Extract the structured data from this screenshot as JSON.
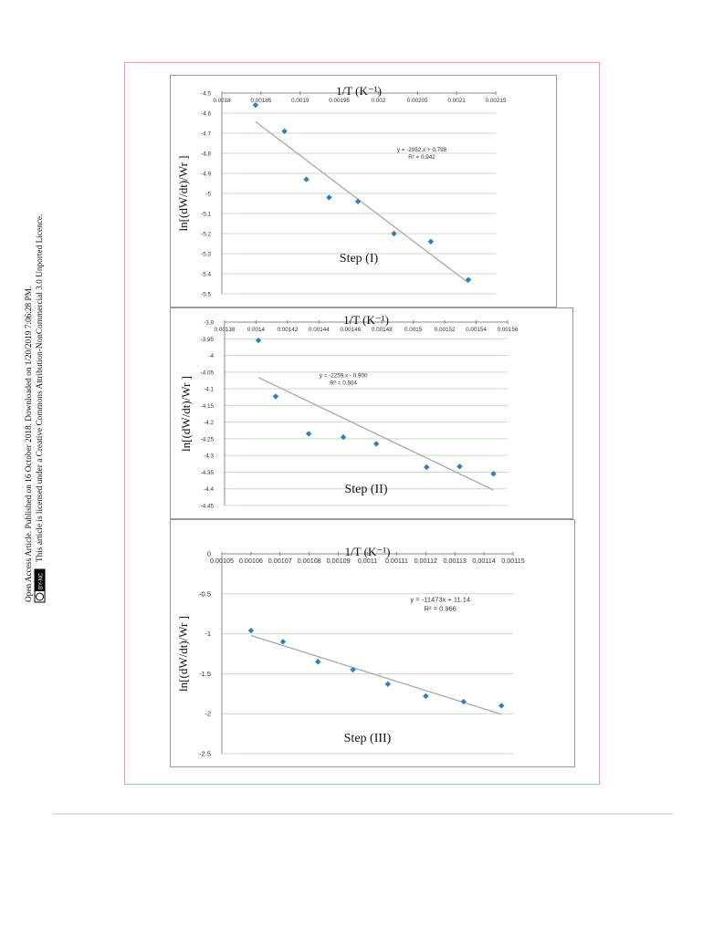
{
  "side_note": {
    "line1": "Open Access Article. Published on 16 October 2018. Downloaded on 1/20/2019 7:06:28 PM.",
    "line2": "This article is licensed under a Creative Commons Attribution-NonCommercial 3.0 Unported Licence.",
    "badge": "BY-NC"
  },
  "colors": {
    "marker": "#2e7fc0",
    "trend": "#a9a9a9",
    "grid": "#c8dcc4",
    "frame": "#d9a0c4",
    "panel_border": "#9a9a9a"
  },
  "chart_data": [
    {
      "type": "scatter",
      "title": "Step (I)",
      "xlabel": "1/T (K⁻¹)",
      "ylabel": "ln[(dW/dt)/Wr ]",
      "xlim": [
        0.0018,
        0.00215
      ],
      "ylim": [
        -5.5,
        -4.5
      ],
      "x_ticks": [
        "0.0018",
        "0.00185",
        "0.0019",
        "0.00195",
        "0.002",
        "0.00205",
        "0.0021",
        "0.00215"
      ],
      "y_ticks": [
        "-4.5",
        "-4.6",
        "-4.7",
        "-4.8",
        "-4.9",
        "-5",
        "-5.1",
        "-5.2",
        "-5.3",
        "-5.4",
        "-5.5"
      ],
      "x_axis_position": "top",
      "grid": true,
      "points": [
        {
          "x": 0.001843,
          "y": -4.56
        },
        {
          "x": 0.00188,
          "y": -4.69
        },
        {
          "x": 0.001908,
          "y": -4.93
        },
        {
          "x": 0.001937,
          "y": -5.02
        },
        {
          "x": 0.001974,
          "y": -5.04
        },
        {
          "x": 0.00202,
          "y": -5.2
        },
        {
          "x": 0.002067,
          "y": -5.24
        },
        {
          "x": 0.002115,
          "y": -5.43
        }
      ],
      "trendline": {
        "slope": -2952,
        "intercept": 0.798,
        "x_range": [
          0.001843,
          0.002115
        ]
      },
      "equation": "y = -2952.x + 0.798",
      "r2": "R² = 0.942"
    },
    {
      "type": "scatter",
      "title": "Step (II)",
      "xlabel": "1/T (K⁻¹)",
      "ylabel": "ln[(dW/dt)/Wr ]",
      "xlim": [
        0.00138,
        0.00156
      ],
      "ylim": [
        -4.45,
        -3.9
      ],
      "x_ticks": [
        "0.00138",
        "0.0014",
        "0.00142",
        "0.00144",
        "0.00146",
        "0.00148",
        "0.0015",
        "0.00152",
        "0.00154",
        "0.00156"
      ],
      "y_ticks": [
        "-3.9",
        "-3.95",
        "-4",
        "-4.05",
        "-4.1",
        "-4.15",
        "-4.2",
        "-4.25",
        "-4.3",
        "-4.35",
        "-4.4",
        "-4.45"
      ],
      "x_axis_position": "top",
      "grid": true,
      "points": [
        {
          "x": 0.0014015,
          "y": -3.955
        },
        {
          "x": 0.0014125,
          "y": -4.123
        },
        {
          "x": 0.0014335,
          "y": -4.235
        },
        {
          "x": 0.0014555,
          "y": -4.245
        },
        {
          "x": 0.0014765,
          "y": -4.265
        },
        {
          "x": 0.0015085,
          "y": -4.335
        },
        {
          "x": 0.0015295,
          "y": -4.333
        },
        {
          "x": 0.001551,
          "y": -4.355
        }
      ],
      "trendline": {
        "slope": -2259,
        "intercept": -0.9,
        "x_range": [
          0.0014015,
          0.001551
        ]
      },
      "equation": "y = -2259.x - 0.900",
      "r2": "R² = 0.804"
    },
    {
      "type": "scatter",
      "title": "Step (III)",
      "xlabel": "1/T (K⁻¹)",
      "ylabel": "ln[(dW/dt)/Wr ]",
      "xlim": [
        0.00105,
        0.00115
      ],
      "ylim": [
        -2.5,
        0
      ],
      "x_ticks": [
        "0.00105",
        "0.00106",
        "0.00107",
        "0.00108",
        "0.00109",
        "0.0011",
        "0.00111",
        "0.00112",
        "0.00113",
        "0.00114",
        "0.00115"
      ],
      "y_ticks": [
        "0",
        "-0.5",
        "-1",
        "-1.5",
        "-2",
        "-2.5"
      ],
      "x_axis_position": "top",
      "grid": true,
      "points": [
        {
          "x": 0.00106,
          "y": -0.96
        },
        {
          "x": 0.001071,
          "y": -1.1
        },
        {
          "x": 0.001083,
          "y": -1.35
        },
        {
          "x": 0.001095,
          "y": -1.45
        },
        {
          "x": 0.001107,
          "y": -1.63
        },
        {
          "x": 0.00112,
          "y": -1.78
        },
        {
          "x": 0.001133,
          "y": -1.85
        },
        {
          "x": 0.001146,
          "y": -1.9
        }
      ],
      "trendline": {
        "slope": -11473,
        "intercept": 11.14,
        "x_range": [
          0.00106,
          0.001146
        ]
      },
      "equation": "y = -11473x + 11.14",
      "r2": "R² = 0.966"
    }
  ]
}
